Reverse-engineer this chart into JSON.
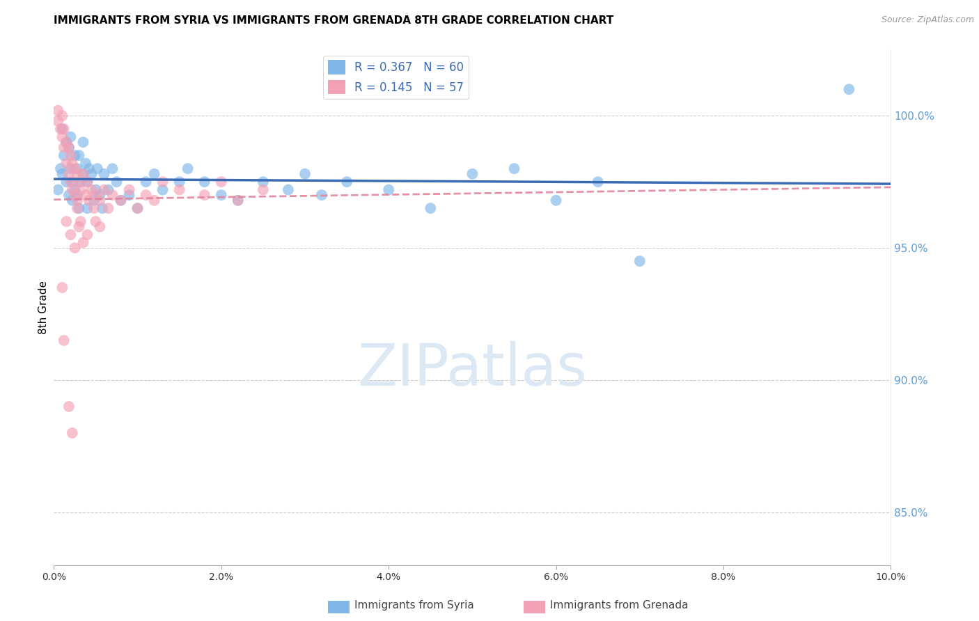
{
  "title": "IMMIGRANTS FROM SYRIA VS IMMIGRANTS FROM GRENADA 8TH GRADE CORRELATION CHART",
  "source": "Source: ZipAtlas.com",
  "ylabel": "8th Grade",
  "right_yticks": [
    85.0,
    90.0,
    95.0,
    100.0
  ],
  "right_ytick_labels": [
    "85.0%",
    "90.0%",
    "95.0%",
    "100.0%"
  ],
  "xlim": [
    0.0,
    10.0
  ],
  "ylim": [
    83.0,
    102.5
  ],
  "R_syria": 0.367,
  "N_syria": 60,
  "R_grenada": 0.145,
  "N_grenada": 57,
  "color_syria": "#7EB6E8",
  "color_grenada": "#F4A0B4",
  "color_line_syria": "#3B6BB5",
  "color_line_grenada": "#E08098",
  "legend_label_syria": "Immigrants from Syria",
  "legend_label_grenada": "Immigrants from Grenada",
  "syria_x": [
    0.05,
    0.08,
    0.1,
    0.1,
    0.12,
    0.15,
    0.15,
    0.18,
    0.18,
    0.2,
    0.2,
    0.22,
    0.22,
    0.25,
    0.25,
    0.28,
    0.28,
    0.3,
    0.3,
    0.32,
    0.35,
    0.35,
    0.38,
    0.4,
    0.4,
    0.42,
    0.45,
    0.48,
    0.5,
    0.52,
    0.55,
    0.58,
    0.6,
    0.65,
    0.7,
    0.75,
    0.8,
    0.9,
    1.0,
    1.1,
    1.2,
    1.3,
    1.5,
    1.6,
    1.8,
    2.0,
    2.2,
    2.5,
    2.8,
    3.0,
    3.2,
    3.5,
    4.0,
    4.5,
    5.0,
    5.5,
    6.0,
    6.5,
    7.0,
    9.5
  ],
  "syria_y": [
    97.2,
    98.0,
    99.5,
    97.8,
    98.5,
    99.0,
    97.5,
    98.8,
    97.0,
    99.2,
    98.0,
    97.5,
    96.8,
    98.5,
    97.2,
    98.0,
    97.0,
    98.5,
    96.5,
    97.5,
    99.0,
    97.8,
    98.2,
    97.5,
    96.5,
    98.0,
    97.8,
    96.8,
    97.2,
    98.0,
    97.0,
    96.5,
    97.8,
    97.2,
    98.0,
    97.5,
    96.8,
    97.0,
    96.5,
    97.5,
    97.8,
    97.2,
    97.5,
    98.0,
    97.5,
    97.0,
    96.8,
    97.5,
    97.2,
    97.8,
    97.0,
    97.5,
    97.2,
    96.5,
    97.8,
    98.0,
    96.8,
    97.5,
    94.5,
    101.0
  ],
  "grenada_x": [
    0.05,
    0.05,
    0.08,
    0.1,
    0.1,
    0.12,
    0.12,
    0.15,
    0.15,
    0.18,
    0.18,
    0.2,
    0.2,
    0.22,
    0.22,
    0.25,
    0.25,
    0.28,
    0.28,
    0.3,
    0.32,
    0.35,
    0.38,
    0.4,
    0.42,
    0.45,
    0.48,
    0.5,
    0.55,
    0.6,
    0.65,
    0.7,
    0.8,
    0.9,
    1.0,
    1.1,
    1.2,
    1.3,
    1.5,
    1.8,
    2.0,
    2.2,
    2.5,
    0.15,
    0.2,
    0.25,
    0.3,
    0.35,
    0.4,
    0.5,
    0.1,
    0.12,
    0.18,
    0.22,
    0.28,
    0.32,
    0.55
  ],
  "grenada_y": [
    100.2,
    99.8,
    99.5,
    100.0,
    99.2,
    99.5,
    98.8,
    99.0,
    98.2,
    98.8,
    97.8,
    98.5,
    97.5,
    98.2,
    97.2,
    98.0,
    97.0,
    97.8,
    96.8,
    97.5,
    97.2,
    97.8,
    97.0,
    97.5,
    96.8,
    97.2,
    96.5,
    97.0,
    96.8,
    97.2,
    96.5,
    97.0,
    96.8,
    97.2,
    96.5,
    97.0,
    96.8,
    97.5,
    97.2,
    97.0,
    97.5,
    96.8,
    97.2,
    96.0,
    95.5,
    95.0,
    95.8,
    95.2,
    95.5,
    96.0,
    93.5,
    91.5,
    89.0,
    88.0,
    96.5,
    96.0,
    95.8
  ]
}
